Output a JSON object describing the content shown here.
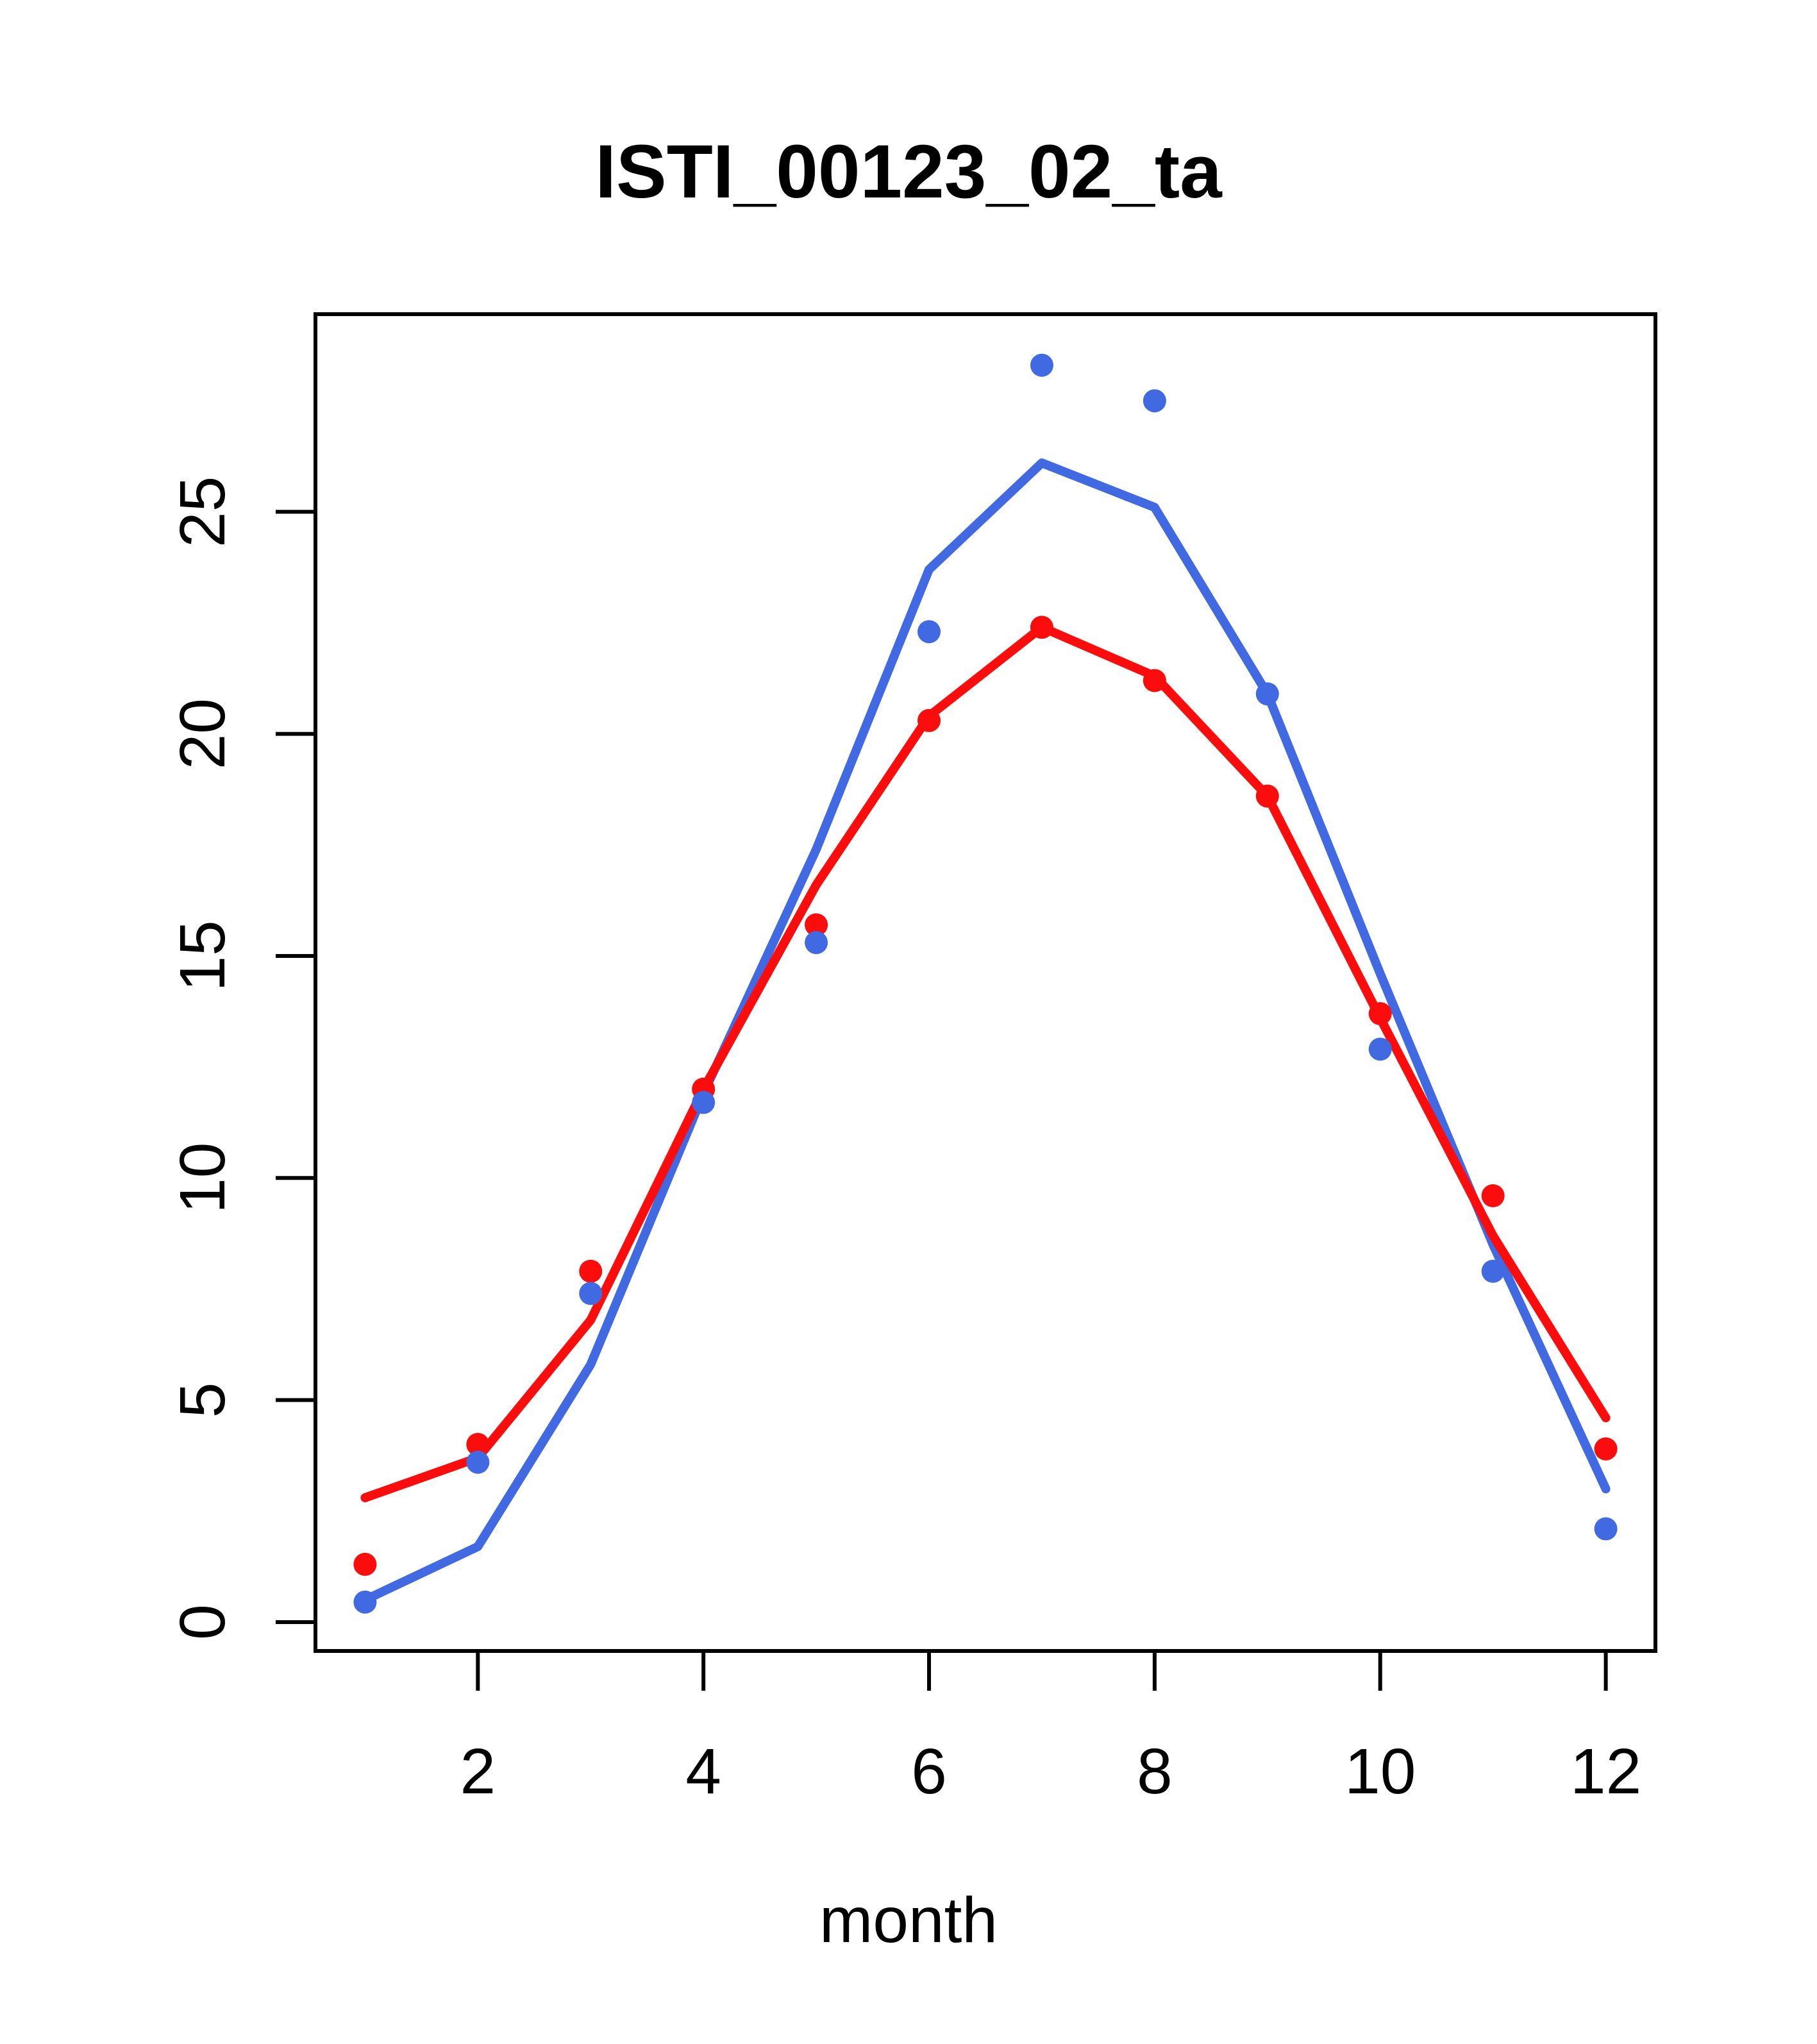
{
  "title": "ISTI_00123_02_ta",
  "chart_data": {
    "type": "line",
    "title": "ISTI_00123_02_ta",
    "xlabel": "month",
    "ylabel": "",
    "x": [
      1,
      2,
      3,
      4,
      5,
      6,
      7,
      8,
      9,
      10,
      11,
      12
    ],
    "x_ticks": [
      2,
      4,
      6,
      8,
      10,
      12
    ],
    "y_ticks": [
      0,
      5,
      10,
      15,
      20,
      25
    ],
    "xlim": [
      0.56,
      12.44
    ],
    "ylim": [
      -0.65,
      29.45
    ],
    "grid": false,
    "legend": null,
    "colors": {
      "blue": "#4169E1",
      "red": "#FB0D0D",
      "axis": "#000000"
    },
    "series": [
      {
        "name": "blue-line",
        "kind": "line",
        "color": "#4169E1",
        "values": [
          0.5,
          1.7,
          5.8,
          11.9,
          17.4,
          23.7,
          26.1,
          25.1,
          20.9,
          14.6,
          8.5,
          3.0
        ]
      },
      {
        "name": "red-line",
        "kind": "line",
        "color": "#FB0D0D",
        "values": [
          2.8,
          3.7,
          6.8,
          12.0,
          16.6,
          20.4,
          22.4,
          21.3,
          18.6,
          13.6,
          8.7,
          4.6
        ]
      },
      {
        "name": "red-points",
        "kind": "points",
        "color": "#FB0D0D",
        "values": [
          1.3,
          4.0,
          7.9,
          12.0,
          15.7,
          20.3,
          22.4,
          21.2,
          18.6,
          13.7,
          9.6,
          3.9
        ]
      },
      {
        "name": "blue-points",
        "kind": "points",
        "color": "#4169E1",
        "values": [
          0.45,
          3.6,
          7.4,
          11.7,
          15.3,
          22.3,
          28.3,
          27.5,
          20.9,
          12.9,
          7.9,
          2.1
        ]
      }
    ]
  }
}
